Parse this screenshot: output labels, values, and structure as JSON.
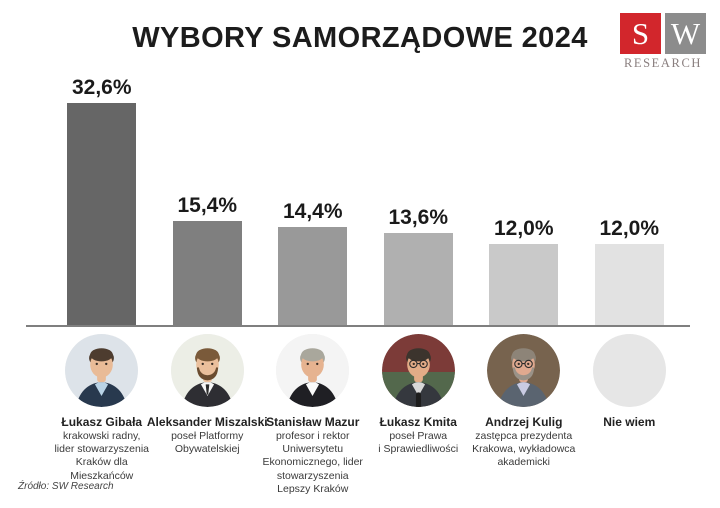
{
  "header": {
    "title": "WYBORY SAMORZĄDOWE 2024",
    "logo": {
      "letter1": "S",
      "letter2": "W",
      "subtext": "RESEARCH",
      "red_color": "#d2262c",
      "gray_color": "#8c8c8c"
    }
  },
  "chart_data": {
    "type": "bar",
    "title": "WYBORY SAMORZĄDOWE 2024",
    "categories": [
      "Łukasz Gibała",
      "Aleksander Miszalski",
      "Stanisław Mazur",
      "Łukasz Kmita",
      "Andrzej Kulig",
      "Nie wiem"
    ],
    "values": [
      32.6,
      15.4,
      14.4,
      13.6,
      12.0,
      12.0
    ],
    "value_labels": [
      "32,6%",
      "15,4%",
      "14,4%",
      "13,6%",
      "12,0%",
      "12,0%"
    ],
    "bar_colors": [
      "#666666",
      "#7f7f7f",
      "#999999",
      "#b0b0b0",
      "#c9c9c9",
      "#e2e2e2"
    ],
    "ylim": [
      0,
      32.6
    ],
    "grid": false,
    "value_axis_hidden": true,
    "value_label_position": "above",
    "baseline_color": "#7f7f7f"
  },
  "candidates": [
    {
      "name": "Łukasz Gibała",
      "description": "krakowski radny,\nlider stowarzyszenia\nKraków dla\nMieszkańców",
      "avatar": {
        "bg": "#dde3e9",
        "hair": "#4d3c2f",
        "skin": "#e9bb97",
        "suit": "#28394e",
        "shirt": "#b9d3e6",
        "beard": false,
        "glasses": false,
        "tie": false,
        "mic": false
      }
    },
    {
      "name": "Aleksander Miszalski",
      "description": "poseł Platformy\nObywatelskiej",
      "avatar": {
        "bg": "#eceee6",
        "hair": "#7a5a3a",
        "skin": "#eabf9c",
        "suit": "#2e2e33",
        "shirt": "#f7f7f7",
        "beard": true,
        "beard_color": "#6b4c30",
        "glasses": false,
        "tie": true,
        "tie_color": "#2b2b2b",
        "mic": false
      }
    },
    {
      "name": "Stanisław Mazur",
      "description": "profesor i rektor\nUniwersytetu\nEkonomicznego, lider\nstowarzyszenia\nLepszy Kraków",
      "avatar": {
        "bg": "#f4f4f4",
        "hair": "#a9a79c",
        "skin": "#e6b390",
        "suit": "#1f1f24",
        "shirt": "#fafafa",
        "beard": false,
        "glasses": false,
        "tie": false,
        "mic": false
      }
    },
    {
      "name": "Łukasz Kmita",
      "description": "poseł Prawa\ni Sprawiedliwości",
      "avatar": {
        "bg": "#7c3b38",
        "bg2": "#53684c",
        "hair": "#3c342d",
        "skin": "#e2ac87",
        "suit": "#35383e",
        "shirt": "#d8d8d8",
        "beard": false,
        "glasses": true,
        "tie": false,
        "mic": true
      }
    },
    {
      "name": "Andrzej Kulig",
      "description": "zastępca prezydenta\nKrakowa, wykładowca\nakademicki",
      "avatar": {
        "bg": "#77634e",
        "hair": "#8d8478",
        "skin": "#e0a98f",
        "suit": "#5a6470",
        "shirt": "#c9cbe2",
        "beard": true,
        "beard_color": "#9a9288",
        "glasses": true,
        "tie": false,
        "mic": false
      }
    },
    {
      "name": "Nie wiem",
      "description": "",
      "avatar": {
        "empty": true,
        "bg": "#e6e6e6"
      }
    }
  ],
  "source": "Źródło: SW Research"
}
